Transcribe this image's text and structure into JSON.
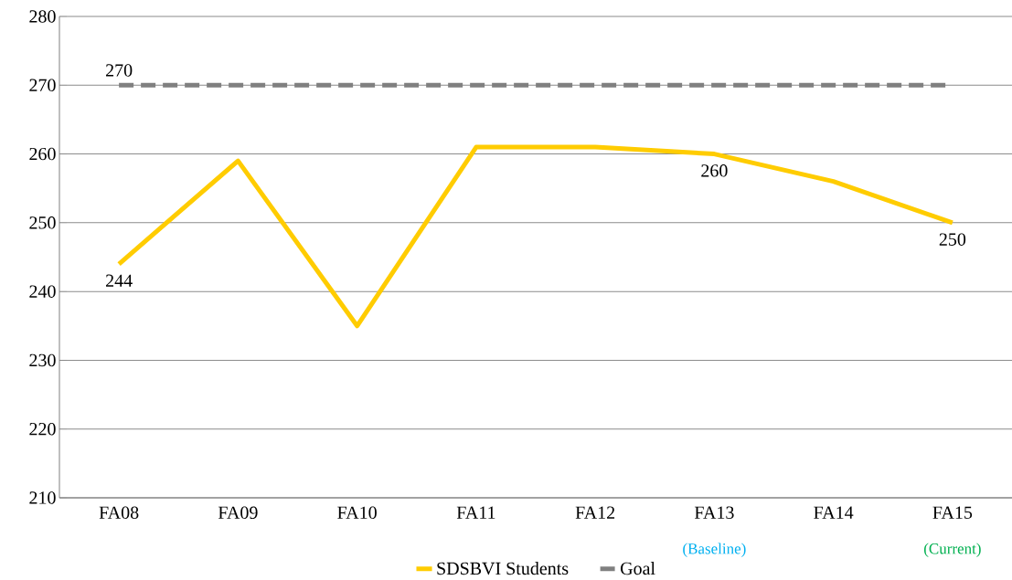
{
  "chart_data": {
    "type": "line",
    "categories": [
      "FA08",
      "FA09",
      "FA10",
      "FA11",
      "FA12",
      "FA13",
      "FA14",
      "FA15"
    ],
    "series": [
      {
        "name": "SDSBVI Students",
        "color": "#ffcc00",
        "line_style": "solid",
        "values": [
          244,
          259,
          235,
          261,
          261,
          260,
          256,
          250
        ],
        "value_labels": [
          "244",
          null,
          null,
          null,
          null,
          "260",
          null,
          "250"
        ]
      },
      {
        "name": "Goal",
        "color": "#808080",
        "line_style": "dashed",
        "values": [
          270,
          270,
          270,
          270,
          270,
          270,
          270,
          270
        ],
        "value_labels": [
          "270",
          null,
          null,
          null,
          null,
          null,
          null,
          null
        ]
      }
    ],
    "annotations": [
      "(Baseline)",
      "(Current)"
    ],
    "ylim": [
      210,
      280
    ],
    "yticks": [
      210,
      220,
      230,
      240,
      250,
      260,
      270,
      280
    ],
    "grid": "y",
    "legend": "bottom",
    "marker": "none"
  }
}
